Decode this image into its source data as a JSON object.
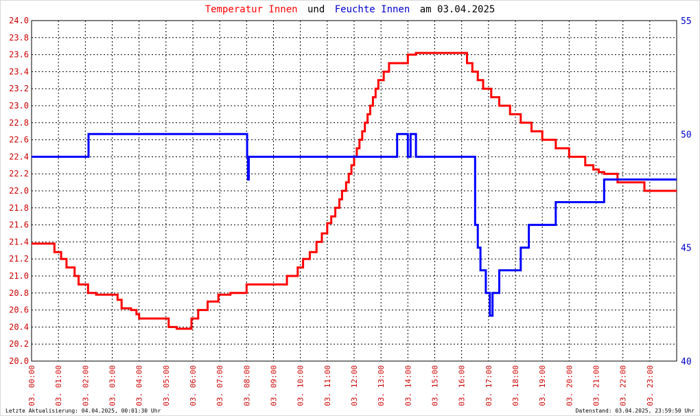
{
  "title": {
    "part1": "Temperatur Innen",
    "part2": "und",
    "part3": "Feuchte Innen",
    "part4": "am 03.04.2025"
  },
  "footer": {
    "left": "Letzte Aktualisierung: 04.04.2025, 00:01:30 Uhr",
    "right": "Datenstand: 03.04.2025, 23:59:50 Uhr"
  },
  "colors": {
    "temperature": "#ff0000",
    "humidity": "#0000ff",
    "grid": "#000000",
    "left_axis_text": "#cc0000",
    "right_axis_text": "#0000cc"
  },
  "chart_data": {
    "type": "line",
    "grid": true,
    "xlim": [
      "03. 00:00",
      "03. 24:00"
    ],
    "x_ticks": [
      "03. 00:00",
      "03. 01:00",
      "03. 02:00",
      "03. 03:00",
      "03. 04:00",
      "03. 05:00",
      "03. 06:00",
      "03. 07:00",
      "03. 08:00",
      "03. 09:00",
      "03. 10:00",
      "03. 11:00",
      "03. 12:00",
      "03. 13:00",
      "03. 14:00",
      "03. 15:00",
      "03. 16:00",
      "03. 17:00",
      "03. 18:00",
      "03. 19:00",
      "03. 20:00",
      "03. 21:00",
      "03. 22:00",
      "03. 23:00"
    ],
    "y_left": {
      "lim": [
        20.0,
        24.0
      ],
      "ticks": [
        "20.0",
        "20.2",
        "20.4",
        "20.6",
        "20.8",
        "21.0",
        "21.2",
        "21.4",
        "21.6",
        "21.8",
        "22.0",
        "22.2",
        "22.4",
        "22.6",
        "22.8",
        "23.0",
        "23.2",
        "23.4",
        "23.6",
        "23.8",
        "24.0"
      ]
    },
    "y_right": {
      "lim": [
        40,
        55
      ],
      "ticks": [
        "40",
        "45",
        "50",
        "55"
      ]
    },
    "series": [
      {
        "name": "Temperatur Innen",
        "axis": "left",
        "x_hours": [
          0,
          0.8,
          0.85,
          1.1,
          1.3,
          1.6,
          1.75,
          2.0,
          2.1,
          2.4,
          2.55,
          3.2,
          3.35,
          3.7,
          3.9,
          4.0,
          5.0,
          5.1,
          5.4,
          5.6,
          5.95,
          6.2,
          6.55,
          6.95,
          7.4,
          8.0,
          8.4,
          8.8,
          9.5,
          9.9,
          10.1,
          10.35,
          10.6,
          10.8,
          11.0,
          11.15,
          11.3,
          11.45,
          11.55,
          11.7,
          11.8,
          11.9,
          12.0,
          12.1,
          12.2,
          12.3,
          12.4,
          12.5,
          12.6,
          12.7,
          12.8,
          12.9,
          13.1,
          13.3,
          13.5,
          13.8,
          14.0,
          14.3,
          14.7,
          14.9,
          15.8,
          16.2,
          16.4,
          16.6,
          16.8,
          17.1,
          17.4,
          17.8,
          18.2,
          18.6,
          19.0,
          19.5,
          20.0,
          20.3,
          20.6,
          20.9,
          21.1,
          21.3,
          21.5,
          21.8,
          22.0,
          22.4,
          22.8,
          23.0,
          23.3,
          23.6,
          23.8,
          24.0
        ],
        "values": [
          21.38,
          21.38,
          21.28,
          21.2,
          21.1,
          21.0,
          20.9,
          20.9,
          20.8,
          20.78,
          20.78,
          20.72,
          20.62,
          20.6,
          20.55,
          20.5,
          20.5,
          20.4,
          20.38,
          20.38,
          20.5,
          20.6,
          20.7,
          20.78,
          20.8,
          20.9,
          20.9,
          20.9,
          21.0,
          21.1,
          21.2,
          21.28,
          21.4,
          21.5,
          21.62,
          21.7,
          21.8,
          21.9,
          22.0,
          22.1,
          22.2,
          22.3,
          22.4,
          22.5,
          22.6,
          22.7,
          22.8,
          22.9,
          23.0,
          23.1,
          23.2,
          23.3,
          23.4,
          23.5,
          23.5,
          23.5,
          23.6,
          23.62,
          23.62,
          23.62,
          23.62,
          23.5,
          23.4,
          23.3,
          23.2,
          23.1,
          23.0,
          22.9,
          22.8,
          22.7,
          22.6,
          22.5,
          22.4,
          22.4,
          22.3,
          22.25,
          22.22,
          22.2,
          22.2,
          22.1,
          22.1,
          22.1,
          22.0,
          22.0,
          22.0,
          22.0,
          22.0,
          22.0
        ]
      },
      {
        "name": "Feuchte Innen",
        "axis": "right",
        "x_hours": [
          0,
          2.05,
          2.12,
          8.0,
          8.02,
          8.05,
          8.08,
          13.55,
          13.6,
          13.9,
          14.0,
          14.1,
          14.2,
          14.3,
          14.5,
          16.4,
          16.5,
          16.6,
          16.7,
          16.9,
          17.05,
          17.1,
          17.15,
          17.3,
          17.4,
          17.8,
          18.2,
          18.5,
          18.6,
          19.3,
          19.5,
          20.0,
          21.2,
          21.3,
          22.0,
          24.0
        ],
        "values": [
          49,
          49,
          50,
          50,
          49,
          48,
          49,
          49,
          50,
          50,
          49,
          50,
          50,
          49,
          49,
          49,
          46,
          45,
          44,
          43,
          42,
          42,
          43,
          43,
          44,
          44,
          45,
          46,
          46,
          46,
          47,
          47,
          47,
          48,
          48,
          48
        ]
      }
    ]
  }
}
